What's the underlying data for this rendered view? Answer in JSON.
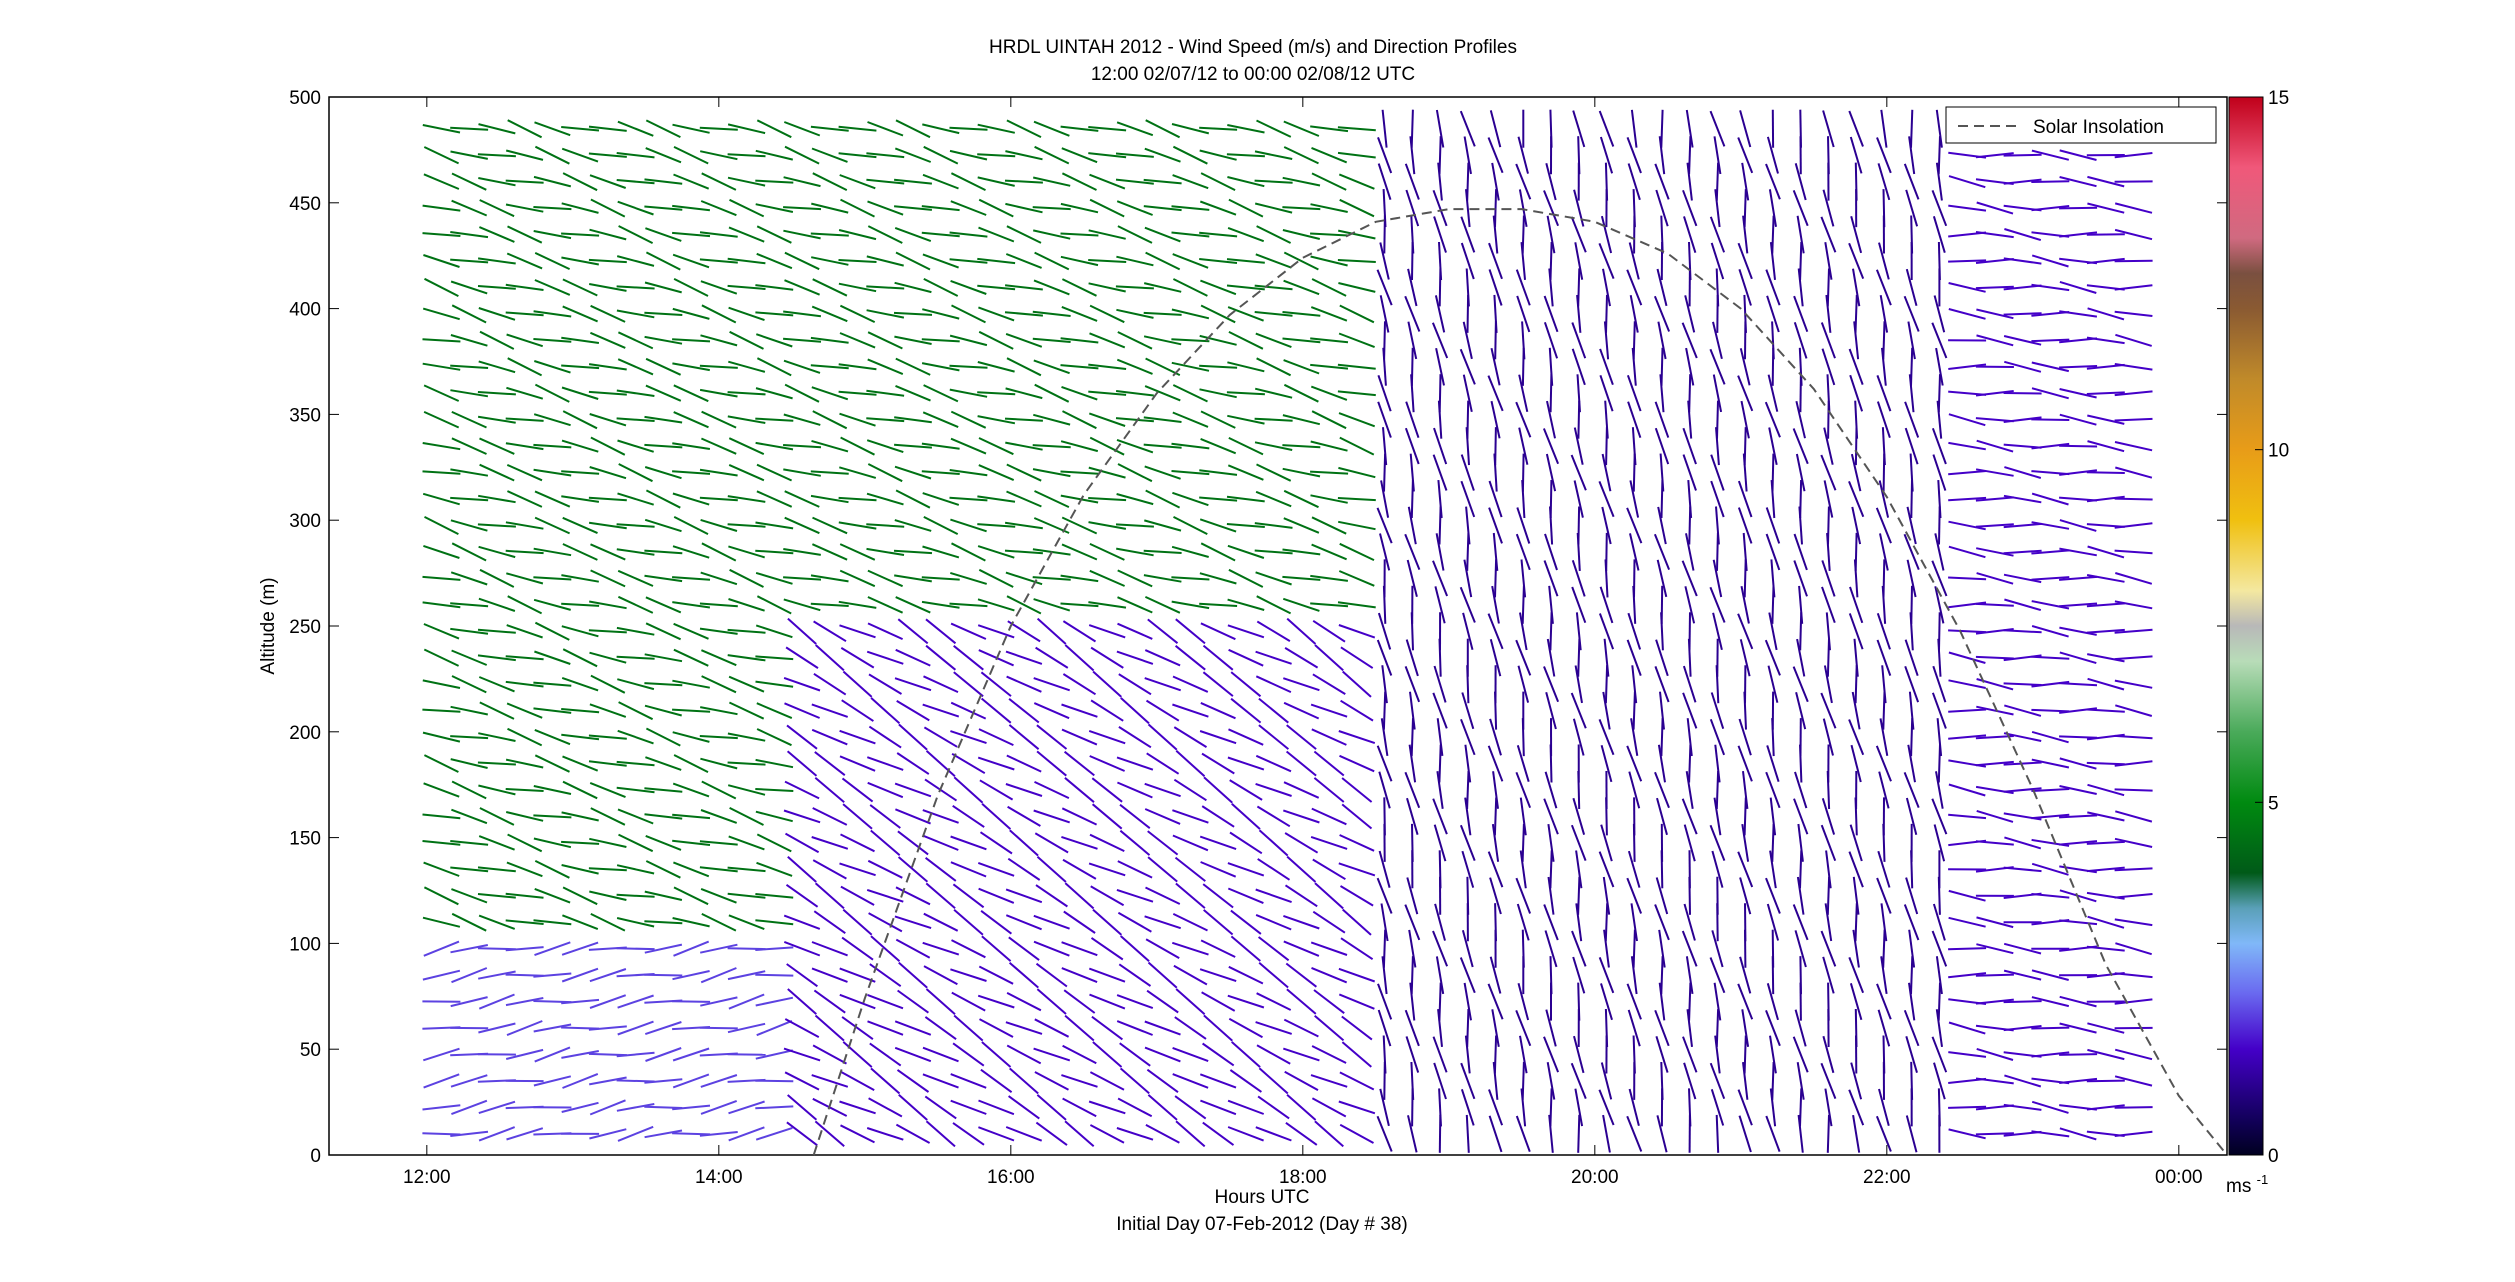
{
  "chart_data": {
    "type": "barb",
    "title": "HRDL UINTAH 2012 - Wind Speed (m/s) and Direction Profiles",
    "subtitle": "12:00 02/07/12 to 00:00 02/08/12  UTC",
    "xlabel": "Hours UTC",
    "xlabel2": "Initial Day 07-Feb-2012 (Day # 38)",
    "ylabel": "Altitude (m)",
    "xlim_hours": [
      11.33,
      24.33
    ],
    "x_ticks": [
      {
        "hour": 12,
        "label": "12:00"
      },
      {
        "hour": 14,
        "label": "14:00"
      },
      {
        "hour": 16,
        "label": "16:00"
      },
      {
        "hour": 18,
        "label": "18:00"
      },
      {
        "hour": 20,
        "label": "20:00"
      },
      {
        "hour": 22,
        "label": "22:00"
      },
      {
        "hour": 24,
        "label": "00:00"
      }
    ],
    "ylim": [
      0,
      500
    ],
    "y_ticks": [
      0,
      50,
      100,
      150,
      200,
      250,
      300,
      350,
      400,
      450,
      500
    ],
    "grid": false,
    "legend": {
      "entries": [
        "Solar Insolation"
      ],
      "placement": "top-right"
    },
    "colorbar": {
      "min": 0,
      "max": 15,
      "ticks": [
        0,
        5,
        10,
        15
      ],
      "unit_base": "ms",
      "unit_exp": "-1",
      "stops": [
        {
          "v": 0,
          "c": "#000020"
        },
        {
          "v": 0.5,
          "c": "#12005a"
        },
        {
          "v": 1.5,
          "c": "#4400c8"
        },
        {
          "v": 2.3,
          "c": "#6a6af0"
        },
        {
          "v": 3.0,
          "c": "#80b8f8"
        },
        {
          "v": 3.5,
          "c": "#5aa0b8"
        },
        {
          "v": 4.0,
          "c": "#005a18"
        },
        {
          "v": 5.0,
          "c": "#008a10"
        },
        {
          "v": 6.0,
          "c": "#4aaa5a"
        },
        {
          "v": 7.0,
          "c": "#b8dcb8"
        },
        {
          "v": 7.5,
          "c": "#b8b8b8"
        },
        {
          "v": 8.0,
          "c": "#f4e8a0"
        },
        {
          "v": 9.0,
          "c": "#f0c010"
        },
        {
          "v": 10.0,
          "c": "#e89c18"
        },
        {
          "v": 11.0,
          "c": "#c08a2a"
        },
        {
          "v": 12.0,
          "c": "#8a5a32"
        },
        {
          "v": 12.5,
          "c": "#7a5040"
        },
        {
          "v": 13.0,
          "c": "#d06a80"
        },
        {
          "v": 14.0,
          "c": "#f0587a"
        },
        {
          "v": 15.0,
          "c": "#c0001a"
        }
      ]
    },
    "solar_insolation": {
      "style": "dashed",
      "color": "#555555",
      "x": [
        14.65,
        15.0,
        15.5,
        16.0,
        16.5,
        17.0,
        17.5,
        18.0,
        18.5,
        19.0,
        19.5,
        20.0,
        20.5,
        21.0,
        21.5,
        22.0,
        22.5,
        23.0,
        23.5,
        24.0,
        24.33
      ],
      "y": [
        0,
        74,
        170,
        250,
        312,
        360,
        397,
        424,
        441,
        447,
        447,
        441,
        426,
        400,
        362,
        311,
        248,
        173,
        90,
        28,
        0
      ]
    },
    "series_regions": [
      {
        "description": "12:00-18:30 upper levels",
        "x_range": [
          12.1,
          18.4
        ],
        "altitude_range": [
          100,
          500
        ],
        "speed_ms": 4.5,
        "direction_toward_deg": 105
      },
      {
        "description": "12:00-14:30 near surface",
        "x_range": [
          12.1,
          14.5
        ],
        "altitude_range": [
          0,
          100
        ],
        "speed_ms": 2.0,
        "direction_toward_deg": 80
      },
      {
        "description": "14:30-18:30 lower levels",
        "x_range": [
          14.5,
          18.4
        ],
        "altitude_range": [
          0,
          250
        ],
        "speed_ms": 1.5,
        "direction_toward_deg": 120
      },
      {
        "description": "18:30-22:40 all levels",
        "x_range": [
          18.4,
          22.4
        ],
        "altitude_range": [
          0,
          500
        ],
        "speed_ms": 1.0,
        "direction_toward_deg": 170
      },
      {
        "description": "22:40-23:50 all levels",
        "x_range": [
          22.4,
          23.8
        ],
        "altitude_range": [
          0,
          500
        ],
        "speed_ms": 1.5,
        "direction_toward_deg": 95
      }
    ]
  }
}
